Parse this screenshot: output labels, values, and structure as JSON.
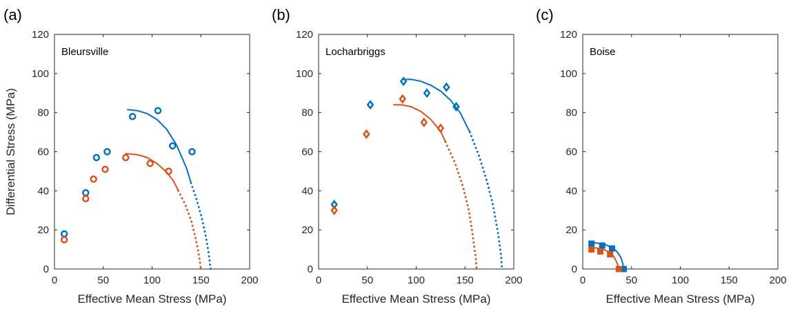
{
  "colors": {
    "blue": "#0072BD",
    "orange": "#D95319",
    "axis": "#262626"
  },
  "chart_data": [
    {
      "type": "scatter",
      "panel_label": "(a)",
      "annotation": "Bleursville",
      "xlabel": "Effective Mean Stress (MPa)",
      "ylabel": "Differential Stress (MPa)",
      "xlim": [
        0,
        200
      ],
      "ylim": [
        0,
        120
      ],
      "xticks": [
        "0",
        "50",
        "100",
        "150",
        "200"
      ],
      "yticks": [
        "0",
        "20",
        "40",
        "60",
        "80",
        "100",
        "120"
      ],
      "marker": "circle",
      "series": [
        {
          "color": "blue",
          "x": [
            10,
            32,
            43,
            54,
            80,
            106,
            121,
            141
          ],
          "y": [
            18,
            39,
            57,
            60,
            78,
            81,
            63,
            60
          ],
          "fit_solid": {
            "x": [
              75,
              85,
              95,
              105,
              115,
              125,
              135,
              140
            ],
            "y": [
              81.5,
              81,
              79.5,
              76.5,
              71.5,
              63.5,
              52,
              44
            ]
          },
          "fit_dotted": {
            "x": [
              140,
              146,
              151,
              155,
              158,
              160
            ],
            "y": [
              44,
              35,
              26,
              17,
              8,
              0
            ]
          }
        },
        {
          "color": "orange",
          "x": [
            10,
            32,
            40,
            52,
            73,
            98,
            117
          ],
          "y": [
            15,
            36,
            46,
            51,
            57,
            54,
            50
          ],
          "fit_solid": {
            "x": [
              73,
              85,
              95,
              105,
              115,
              122,
              127
            ],
            "y": [
              59,
              58.5,
              57,
              54,
              49.5,
              45,
              40
            ]
          },
          "fit_dotted": {
            "x": [
              127,
              134,
              140,
              144,
              147,
              149,
              150
            ],
            "y": [
              40,
              33,
              25,
              17,
              10,
              4,
              0
            ]
          }
        }
      ]
    },
    {
      "type": "scatter",
      "panel_label": "(b)",
      "annotation": "Locharbriggs",
      "xlabel": "Effective Mean Stress (MPa)",
      "ylabel": "",
      "xlim": [
        0,
        200
      ],
      "ylim": [
        0,
        120
      ],
      "xticks": [
        "0",
        "50",
        "100",
        "150",
        "200"
      ],
      "yticks": [
        "0",
        "20",
        "40",
        "60",
        "80",
        "100",
        "120"
      ],
      "marker": "diamond",
      "series": [
        {
          "color": "blue",
          "x": [
            16,
            53,
            87,
            111,
            131,
            141
          ],
          "y": [
            33,
            84,
            96,
            90,
            93,
            83
          ],
          "fit_solid": {
            "x": [
              86,
              95,
              105,
              115,
              125,
              135,
              145,
              155
            ],
            "y": [
              97,
              97,
              96,
              94,
              91,
              86.5,
              80,
              70
            ]
          },
          "fit_dotted": {
            "x": [
              155,
              165,
              173,
              179,
              184,
              187,
              188
            ],
            "y": [
              70,
              57,
              44,
              32,
              18,
              7,
              0
            ]
          }
        },
        {
          "color": "orange",
          "x": [
            16,
            49,
            86,
            108,
            125
          ],
          "y": [
            30,
            69,
            87,
            75,
            72
          ],
          "fit_solid": {
            "x": [
              77,
              85,
              95,
              105,
              115,
              125,
              130
            ],
            "y": [
              84,
              84,
              83,
              80.5,
              76.5,
              70.5,
              65
            ]
          },
          "fit_dotted": {
            "x": [
              130,
              140,
              148,
              154,
              158,
              161,
              162
            ],
            "y": [
              65,
              54,
              42,
              30,
              17,
              6,
              0
            ]
          }
        }
      ]
    },
    {
      "type": "scatter",
      "panel_label": "(c)",
      "annotation": "Boise",
      "xlabel": "Effective Mean Stress (MPa)",
      "ylabel": "",
      "xlim": [
        0,
        200
      ],
      "ylim": [
        0,
        120
      ],
      "xticks": [
        "0",
        "50",
        "100",
        "150",
        "200"
      ],
      "yticks": [
        "0",
        "20",
        "40",
        "60",
        "80",
        "100",
        "120"
      ],
      "marker": "square",
      "series": [
        {
          "color": "blue",
          "x": [
            9,
            20,
            30,
            42
          ],
          "y": [
            13,
            12,
            10.5,
            0
          ],
          "fit_solid": {
            "x": [
              9,
              16,
              23,
              30,
              35,
              39,
              41,
              42
            ],
            "y": [
              13.5,
              13.2,
              12.5,
              11,
              9,
              6,
              3,
              0
            ]
          }
        },
        {
          "color": "orange",
          "x": [
            9,
            18,
            28,
            37
          ],
          "y": [
            10,
            9,
            7.5,
            0
          ],
          "fit_solid": {
            "x": [
              8,
              15,
              21,
              26,
              31,
              34,
              36,
              37
            ],
            "y": [
              11,
              10.7,
              10,
              9,
              7,
              4.5,
              2,
              0
            ]
          }
        }
      ]
    }
  ]
}
